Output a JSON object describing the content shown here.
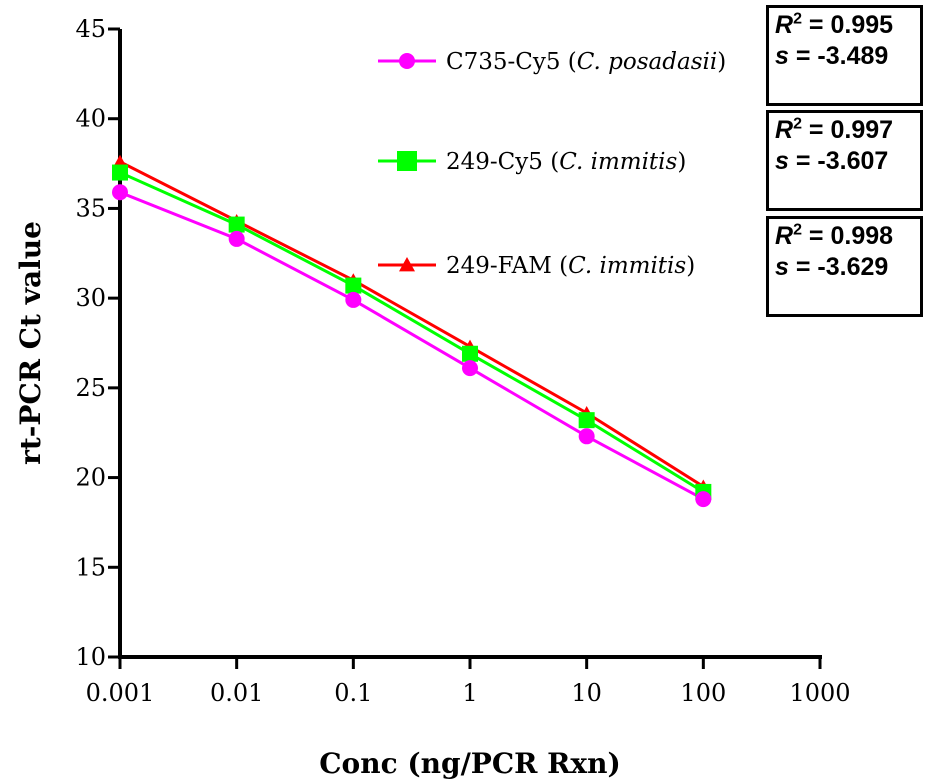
{
  "chart_data": {
    "type": "line",
    "title": "",
    "xlabel": "Conc (ng/PCR Rxn)",
    "ylabel": "rt-PCR Ct value",
    "x_scale": "log",
    "xlim": [
      0.001,
      1000
    ],
    "ylim": [
      10,
      45
    ],
    "x_ticks": [
      "0.001",
      "0.01",
      "0.1",
      "1",
      "10",
      "100",
      "1000"
    ],
    "y_ticks": [
      "10",
      "15",
      "20",
      "25",
      "30",
      "35",
      "40",
      "45"
    ],
    "x": [
      0.001,
      0.01,
      0.1,
      1,
      10,
      100
    ],
    "grid": false,
    "legend_position": "top-right",
    "series": [
      {
        "name_plain": "C735-Cy5 (",
        "name_italic": "C. posadasii",
        "name_close": ")",
        "color": "#ff00ff",
        "marker": "circle",
        "values": [
          35.9,
          33.3,
          29.9,
          26.1,
          22.3,
          18.8
        ],
        "stats": {
          "r2": "0.995",
          "s": "-3.489"
        }
      },
      {
        "name_plain": "249-Cy5 (",
        "name_italic": "C. immitis",
        "name_close": ")",
        "color": "#00ff00",
        "marker": "square",
        "values": [
          37.0,
          34.1,
          30.7,
          26.9,
          23.2,
          19.2
        ],
        "stats": {
          "r2": "0.997",
          "s": "-3.607"
        }
      },
      {
        "name_plain": "249-FAM (",
        "name_italic": "C. immitis",
        "name_close": ")",
        "color": "#ff0000",
        "marker": "triangle",
        "values": [
          37.6,
          34.3,
          31.0,
          27.3,
          23.6,
          19.5
        ],
        "stats": {
          "r2": "0.998",
          "s": "-3.629"
        }
      }
    ]
  },
  "labels": {
    "r2_prefix": "R",
    "r2_sup": "2",
    "eq": " = ",
    "s_prefix": "s"
  }
}
